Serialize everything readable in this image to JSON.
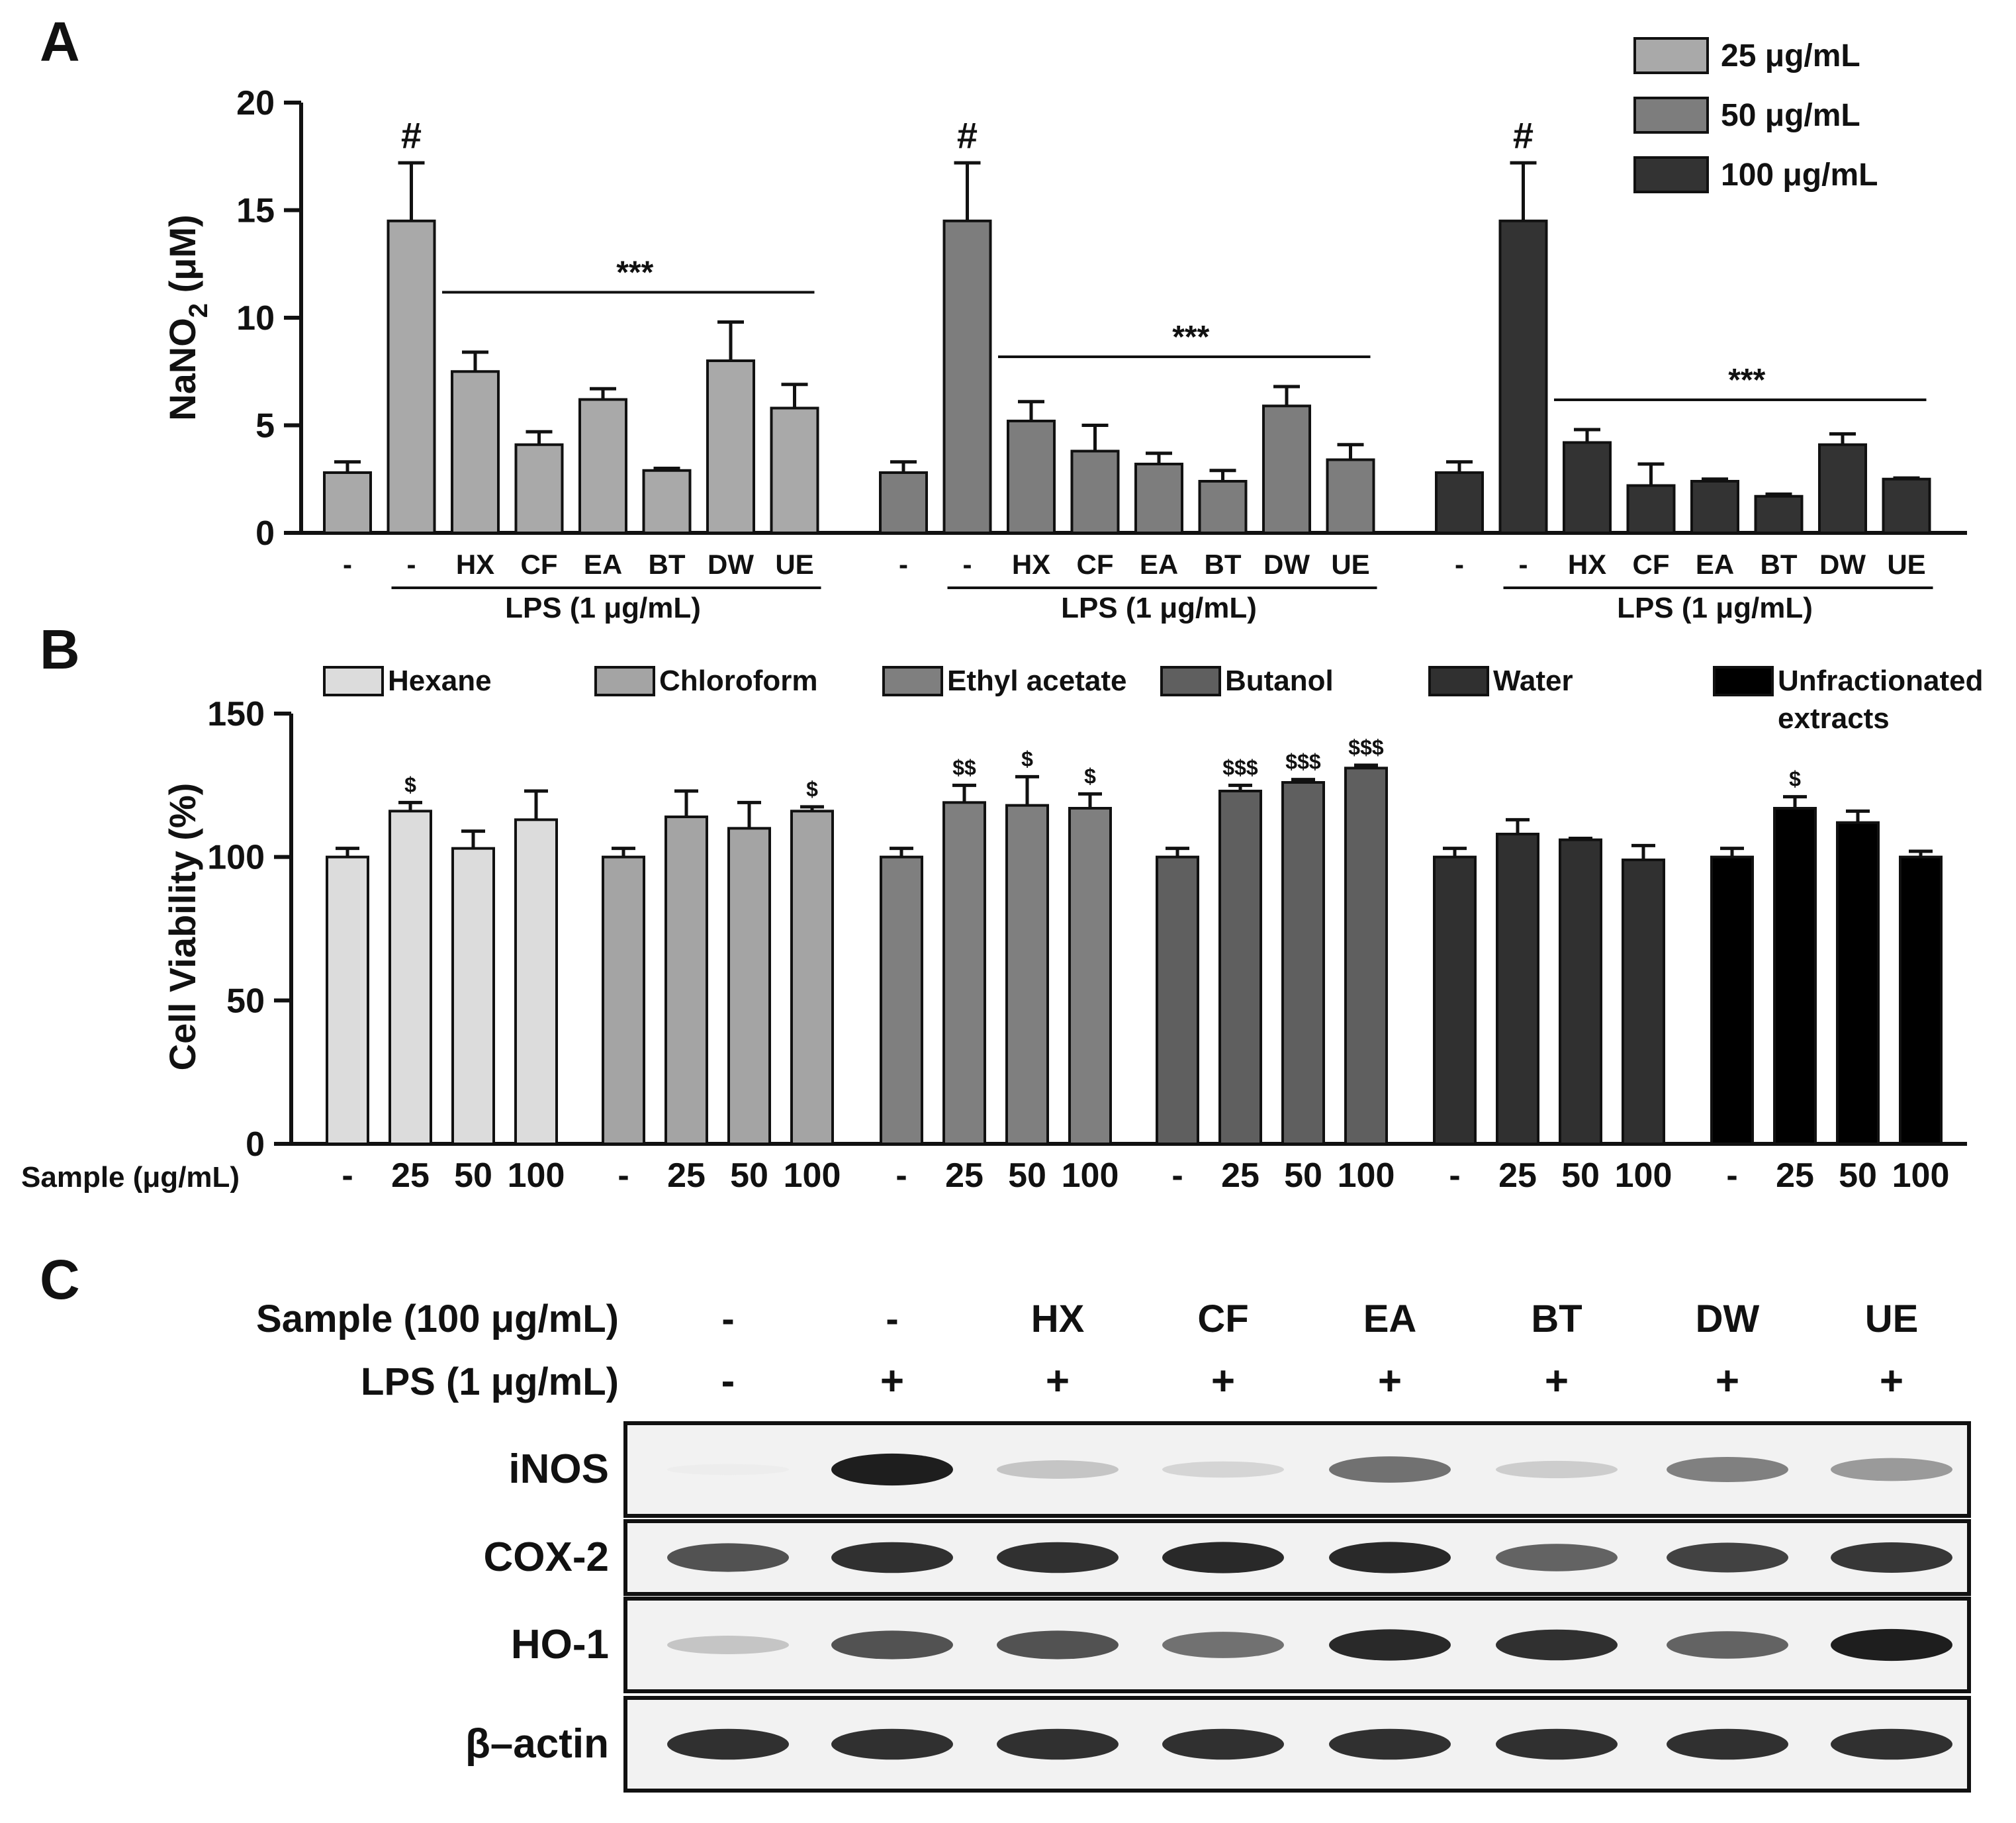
{
  "panel_letters": [
    "A",
    "B",
    "C"
  ],
  "chart_data": [
    {
      "panel": "A",
      "type": "bar",
      "ylabel": "NaNO",
      "ylabel_sub": "2",
      "ylabel_unit": " (μM)",
      "ylim": [
        0,
        20
      ],
      "yticks": [
        0,
        5,
        10,
        15,
        20
      ],
      "categories": [
        "-",
        "-",
        "HX",
        "CF",
        "EA",
        "BT",
        "DW",
        "UE"
      ],
      "lps_label": "LPS (1 μg/mL)",
      "legend": [
        {
          "label": "25 μg/mL",
          "color": "#a9a9a9"
        },
        {
          "label": "50 μg/mL",
          "color": "#7d7d7d"
        },
        {
          "label": "100 μg/mL",
          "color": "#333333"
        }
      ],
      "series": [
        {
          "name": "25 μg/mL",
          "color": "#a9a9a9",
          "values": [
            2.8,
            14.5,
            7.5,
            4.1,
            6.2,
            2.9,
            8.0,
            5.8
          ],
          "errors": [
            0.5,
            2.7,
            0.9,
            0.6,
            0.5,
            0.1,
            1.8,
            1.1
          ],
          "hash_label": "#",
          "significance": "***"
        },
        {
          "name": "50 μg/mL",
          "color": "#7d7d7d",
          "values": [
            2.8,
            14.5,
            5.2,
            3.8,
            3.2,
            2.4,
            5.9,
            3.4
          ],
          "errors": [
            0.5,
            2.7,
            0.9,
            1.2,
            0.5,
            0.5,
            0.9,
            0.7
          ],
          "hash_label": "#",
          "significance": "***"
        },
        {
          "name": "100 μg/mL",
          "color": "#333333",
          "values": [
            2.8,
            14.5,
            4.2,
            2.2,
            2.4,
            1.7,
            4.1,
            2.5
          ],
          "errors": [
            0.5,
            2.7,
            0.6,
            1.0,
            0.1,
            0.1,
            0.5,
            0.05
          ],
          "hash_label": "#",
          "significance": "***"
        }
      ]
    },
    {
      "panel": "B",
      "type": "bar",
      "ylabel": "Cell Viability (%)",
      "ylim": [
        0,
        150
      ],
      "yticks": [
        0,
        50,
        100,
        150
      ],
      "xlabel": "Sample (μg/mL)",
      "categories": [
        "-",
        "25",
        "50",
        "100"
      ],
      "legend": [
        {
          "label": "Hexane",
          "color": "#dcdcdc"
        },
        {
          "label": "Chloroform",
          "color": "#a4a4a4"
        },
        {
          "label": "Ethyl acetate",
          "color": "#7f7f7f"
        },
        {
          "label": "Butanol",
          "color": "#5f5f5f"
        },
        {
          "label": "Water",
          "color": "#303030"
        },
        {
          "label": "Unfractionated",
          "label2": "extracts",
          "color": "#000000"
        }
      ],
      "series": [
        {
          "name": "Hexane",
          "color": "#dcdcdc",
          "values": [
            100,
            116,
            103,
            113
          ],
          "errors": [
            3,
            3,
            6,
            10
          ],
          "marks": [
            "",
            "$",
            "",
            ""
          ]
        },
        {
          "name": "Chloroform",
          "color": "#a4a4a4",
          "values": [
            100,
            114,
            110,
            116
          ],
          "errors": [
            3,
            9,
            9,
            1.5
          ],
          "marks": [
            "",
            "",
            "",
            "$"
          ]
        },
        {
          "name": "Ethyl acetate",
          "color": "#7f7f7f",
          "values": [
            100,
            119,
            118,
            117
          ],
          "errors": [
            3,
            6,
            10,
            5
          ],
          "marks": [
            "",
            "$$",
            "$",
            "$"
          ]
        },
        {
          "name": "Butanol",
          "color": "#5f5f5f",
          "values": [
            100,
            123,
            126,
            131
          ],
          "errors": [
            3,
            2,
            1,
            1
          ],
          "marks": [
            "",
            "$$$",
            "$$$",
            "$$$"
          ]
        },
        {
          "name": "Water",
          "color": "#303030",
          "values": [
            100,
            108,
            106,
            99
          ],
          "errors": [
            3,
            5,
            0.5,
            5
          ],
          "marks": [
            "",
            "",
            "",
            ""
          ]
        },
        {
          "name": "Unfractionated extracts",
          "color": "#000000",
          "values": [
            100,
            117,
            112,
            100
          ],
          "errors": [
            3,
            4,
            4,
            2
          ],
          "marks": [
            "",
            "$",
            "",
            ""
          ]
        }
      ]
    },
    {
      "panel": "C",
      "type": "table",
      "sample_label": "Sample (100 μg/mL)",
      "lps_label": "LPS (1 μg/mL)",
      "samples": [
        "-",
        "-",
        "HX",
        "CF",
        "EA",
        "BT",
        "DW",
        "UE"
      ],
      "lps": [
        "-",
        "+",
        "+",
        "+",
        "+",
        "+",
        "+",
        "+"
      ],
      "blots": [
        {
          "name": "iNOS",
          "intensity": [
            0.02,
            0.95,
            0.35,
            0.25,
            0.7,
            0.3,
            0.65,
            0.55
          ]
        },
        {
          "name": "COX-2",
          "intensity": [
            0.8,
            0.9,
            0.9,
            0.92,
            0.92,
            0.75,
            0.85,
            0.88
          ]
        },
        {
          "name": "HO-1",
          "intensity": [
            0.35,
            0.8,
            0.8,
            0.7,
            0.92,
            0.9,
            0.75,
            0.95
          ]
        },
        {
          "name": "β–actin",
          "intensity": [
            0.9,
            0.9,
            0.9,
            0.9,
            0.9,
            0.9,
            0.9,
            0.9
          ]
        }
      ]
    }
  ]
}
